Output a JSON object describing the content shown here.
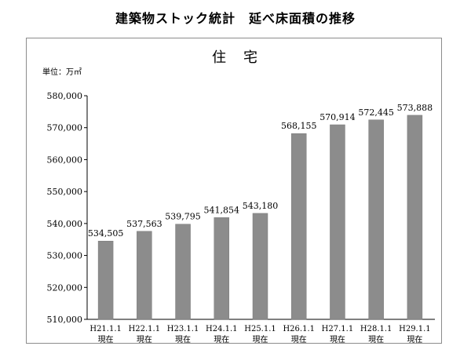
{
  "page_title": "建築物ストック統計　延べ床面積の推移",
  "chart_data": {
    "type": "bar",
    "title": "住宅",
    "unit_label": "単位：万㎡",
    "categories": [
      "H21.1.1",
      "H22.1.1",
      "H23.1.1",
      "H24.1.1",
      "H25.1.1",
      "H26.1.1",
      "H27.1.1",
      "H28.1.1",
      "H29.1.1"
    ],
    "category_suffix": "現在",
    "values": [
      534505,
      537563,
      539795,
      541854,
      543180,
      568155,
      570914,
      572445,
      573888
    ],
    "value_labels": [
      "534,505",
      "537,563",
      "539,795",
      "541,854",
      "543,180",
      "568,155",
      "570,914",
      "572,445",
      "573,888"
    ],
    "ylim": [
      510000,
      580000
    ],
    "yticks": [
      510000,
      520000,
      530000,
      540000,
      550000,
      560000,
      570000,
      580000
    ],
    "ytick_labels": [
      "510,000",
      "520,000",
      "530,000",
      "540,000",
      "550,000",
      "560,000",
      "570,000",
      "580,000"
    ],
    "grid": false,
    "legend": "none",
    "bar_color": "#8c8c8c",
    "xlabel": "",
    "ylabel": ""
  }
}
